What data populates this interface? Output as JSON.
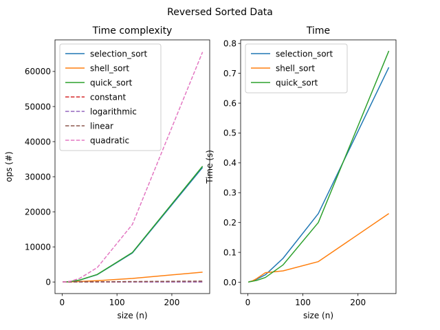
{
  "figure": {
    "suptitle": "Reversed Sorted Data"
  },
  "chart_data": [
    {
      "type": "line",
      "title": "Time complexity",
      "xlabel": "size (n)",
      "ylabel": "ops (#)",
      "xlim": [
        -13,
        269
      ],
      "ylim": [
        -3300,
        69000
      ],
      "xticks": [
        0,
        100,
        200
      ],
      "xtick_labels": [
        "0",
        "100",
        "200"
      ],
      "yticks": [
        0,
        10000,
        20000,
        30000,
        40000,
        50000,
        60000
      ],
      "ytick_labels": [
        "0",
        "10000",
        "20000",
        "30000",
        "40000",
        "50000",
        "60000"
      ],
      "grid": false,
      "legend_position": "top-left",
      "series": [
        {
          "name": "selection_sort",
          "color": "#1f77b4",
          "dash": "solid",
          "x": [
            1,
            2,
            4,
            8,
            16,
            32,
            64,
            128,
            256
          ],
          "y": [
            0,
            2,
            10,
            36,
            136,
            528,
            2080,
            8256,
            32640
          ]
        },
        {
          "name": "shell_sort",
          "color": "#ff7f0e",
          "dash": "solid",
          "x": [
            1,
            2,
            4,
            8,
            16,
            32,
            64,
            128,
            256
          ],
          "y": [
            0,
            2,
            6,
            20,
            55,
            150,
            380,
            1000,
            2800
          ]
        },
        {
          "name": "quick_sort",
          "color": "#2ca02c",
          "dash": "solid",
          "x": [
            1,
            2,
            4,
            8,
            16,
            32,
            64,
            128,
            256
          ],
          "y": [
            0,
            3,
            12,
            40,
            150,
            560,
            2150,
            8400,
            33000
          ]
        },
        {
          "name": "constant",
          "color": "#d62728",
          "dash": "dashed",
          "x": [
            1,
            2,
            4,
            8,
            16,
            32,
            64,
            128,
            256
          ],
          "y": [
            1,
            1,
            1,
            1,
            1,
            1,
            1,
            1,
            1
          ]
        },
        {
          "name": "logarithmic",
          "color": "#9467bd",
          "dash": "dashed",
          "x": [
            1,
            2,
            4,
            8,
            16,
            32,
            64,
            128,
            256
          ],
          "y": [
            0,
            1,
            2,
            3,
            4,
            5,
            6,
            7,
            8
          ]
        },
        {
          "name": "linear",
          "color": "#8c564b",
          "dash": "dashed",
          "x": [
            1,
            2,
            4,
            8,
            16,
            32,
            64,
            128,
            256
          ],
          "y": [
            1,
            2,
            4,
            8,
            16,
            32,
            64,
            128,
            256
          ]
        },
        {
          "name": "quadratic",
          "color": "#e377c2",
          "dash": "dashed",
          "x": [
            1,
            2,
            4,
            8,
            16,
            32,
            64,
            128,
            256
          ],
          "y": [
            1,
            4,
            16,
            64,
            256,
            1024,
            4096,
            16384,
            65536
          ]
        }
      ]
    },
    {
      "type": "line",
      "title": "Time",
      "xlabel": "size (n)",
      "ylabel": "Time (s)",
      "xlim": [
        -13,
        269
      ],
      "ylim": [
        -0.038,
        0.812
      ],
      "xticks": [
        0,
        100,
        200
      ],
      "xtick_labels": [
        "0",
        "100",
        "200"
      ],
      "yticks": [
        0.0,
        0.1,
        0.2,
        0.3,
        0.4,
        0.5,
        0.6,
        0.7,
        0.8
      ],
      "ytick_labels": [
        "0.0",
        "0.1",
        "0.2",
        "0.3",
        "0.4",
        "0.5",
        "0.6",
        "0.7",
        "0.8"
      ],
      "grid": false,
      "legend_position": "top-left",
      "series": [
        {
          "name": "selection_sort",
          "color": "#1f77b4",
          "dash": "solid",
          "x": [
            1,
            2,
            4,
            8,
            16,
            32,
            64,
            128,
            256
          ],
          "y": [
            0.0,
            0.001,
            0.002,
            0.004,
            0.01,
            0.025,
            0.08,
            0.23,
            0.72
          ]
        },
        {
          "name": "shell_sort",
          "color": "#ff7f0e",
          "dash": "solid",
          "x": [
            1,
            2,
            4,
            8,
            16,
            32,
            64,
            128,
            256
          ],
          "y": [
            0.0,
            0.001,
            0.002,
            0.004,
            0.012,
            0.032,
            0.038,
            0.069,
            0.23
          ]
        },
        {
          "name": "quick_sort",
          "color": "#2ca02c",
          "dash": "solid",
          "x": [
            1,
            2,
            4,
            8,
            16,
            32,
            64,
            128,
            256
          ],
          "y": [
            0.0,
            0.001,
            0.002,
            0.003,
            0.006,
            0.016,
            0.058,
            0.2,
            0.775
          ]
        }
      ]
    }
  ]
}
